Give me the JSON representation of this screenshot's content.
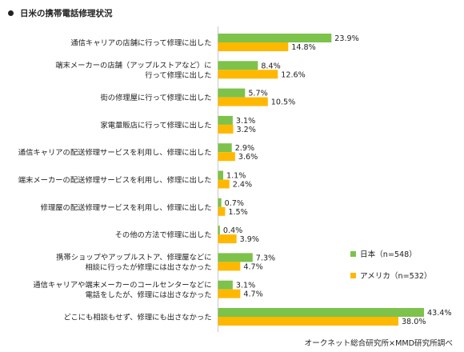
{
  "title": "日米の携帯電話修理状況",
  "source": "オークネット総合研究所×MMD研究所調べ",
  "chart_data": {
    "type": "bar",
    "orientation": "horizontal",
    "categories": [
      [
        "通信キャリアの店舗に行って修理に出した"
      ],
      [
        "端末メーカーの店舗（アップルストアなど）に",
        "行って修理に出した"
      ],
      [
        "街の修理屋に行って修理に出した"
      ],
      [
        "家電量販店に行って修理に出した"
      ],
      [
        "通信キャリアの配送修理サービスを利用し、修理に出した"
      ],
      [
        "端末メーカーの配送修理サービスを利用し、修理に出した"
      ],
      [
        "修理屋の配送修理サービスを利用し、修理に出した"
      ],
      [
        "その他の方法で修理に出した"
      ],
      [
        "携帯ショップやアップルストア、修理屋などに",
        "相談に行ったが修理には出さなかった"
      ],
      [
        "通信キャリアや端末メーカーのコールセンターなどに",
        "電話をしたが、修理には出さなかった"
      ],
      [
        "どこにも相談もせず、修理にも出さなかった"
      ]
    ],
    "series": [
      {
        "name": "日本（n=548）",
        "color": "#7dc24b",
        "values": [
          23.9,
          8.4,
          5.7,
          3.1,
          2.9,
          1.1,
          0.7,
          0.4,
          7.3,
          3.1,
          43.4
        ],
        "labels": [
          "23.9%",
          "8.4%",
          "5.7%",
          "3.1%",
          "2.9%",
          "1.1%",
          "0.7%",
          "0.4%",
          "7.3%",
          "3.1%",
          "43.4%"
        ]
      },
      {
        "name": "アメリカ（n=532）",
        "color": "#ffb800",
        "values": [
          14.8,
          12.6,
          10.5,
          3.2,
          3.6,
          2.4,
          1.5,
          3.9,
          4.7,
          4.7,
          38.0
        ],
        "labels": [
          "14.8%",
          "12.6%",
          "10.5%",
          "3.2%",
          "3.6%",
          "2.4%",
          "1.5%",
          "3.9%",
          "4.7%",
          "4.7%",
          "38.0%"
        ]
      }
    ],
    "xlim": [
      0,
      50
    ],
    "grid": false,
    "legend": "right"
  }
}
